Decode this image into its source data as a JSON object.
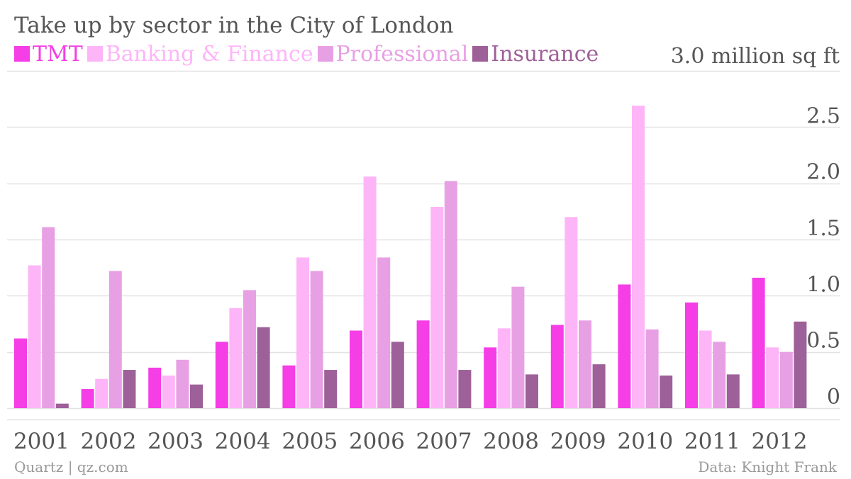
{
  "title": "Take up by sector in the City of London",
  "unit_label": "3.0 million sq ft",
  "footer": {
    "source_left": "Quartz | qz.com",
    "source_right": "Data: Knight Frank"
  },
  "colors": {
    "tmt": "#f53ee5",
    "banking": "#fdb5f8",
    "professional": "#e8a0e4",
    "insurance": "#9e6098",
    "gridline": "#e3e3e3",
    "axis_text": "#555555",
    "footer_text": "#999999"
  },
  "chart_data": {
    "type": "bar",
    "title": "Take up by sector in the City of London",
    "xlabel": "",
    "ylabel": "",
    "categories": [
      "2001",
      "2002",
      "2003",
      "2004",
      "2005",
      "2006",
      "2007",
      "2008",
      "2009",
      "2010",
      "2011",
      "2012"
    ],
    "series": [
      {
        "name": "TMT",
        "color": "#f53ee5",
        "values": [
          0.62,
          0.17,
          0.36,
          0.59,
          0.38,
          0.69,
          0.78,
          0.54,
          0.74,
          1.1,
          0.94,
          1.16
        ]
      },
      {
        "name": "Banking & Finance",
        "color": "#fdb5f8",
        "values": [
          1.27,
          0.26,
          0.29,
          0.89,
          1.34,
          2.06,
          1.79,
          0.71,
          1.7,
          2.69,
          0.69,
          0.54
        ]
      },
      {
        "name": "Professional",
        "color": "#e8a0e4",
        "values": [
          1.61,
          1.22,
          0.43,
          1.05,
          1.22,
          1.34,
          2.02,
          1.08,
          0.78,
          0.7,
          0.59,
          0.5
        ]
      },
      {
        "name": "Insurance",
        "color": "#9e6098",
        "values": [
          0.04,
          0.34,
          0.21,
          0.72,
          0.34,
          0.59,
          0.34,
          0.3,
          0.39,
          0.29,
          0.3,
          0.77
        ]
      }
    ],
    "ylim": [
      0,
      3.0
    ],
    "yticks": [
      0,
      0.5,
      1.0,
      1.5,
      2.0,
      2.5
    ],
    "ytick_labels": [
      "0",
      "0.5",
      "1.0",
      "1.5",
      "2.0",
      "2.5"
    ],
    "grid": true,
    "legend_position": "top-left",
    "y_axis_side": "right"
  }
}
